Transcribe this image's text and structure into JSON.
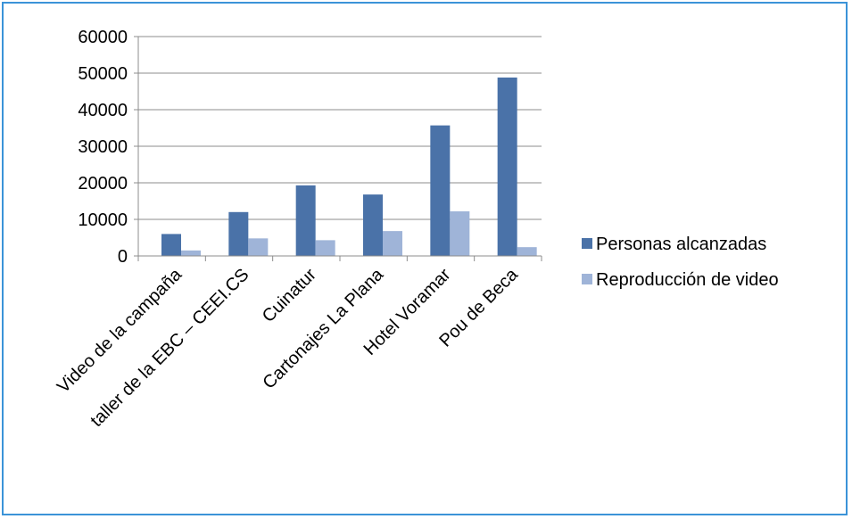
{
  "chart_data": {
    "type": "bar",
    "title": "",
    "xlabel": "",
    "ylabel": "",
    "categories": [
      "Video de la campaña",
      "taller de la EBC – CEEI.CS",
      "Cuinatur",
      "Cartonajes La Plana",
      "Hotel Voramar",
      "Pou de Beca"
    ],
    "series": [
      {
        "name": "Personas alcanzadas",
        "color": "#4a72a8",
        "values": [
          6000,
          12000,
          19300,
          16800,
          35700,
          48800
        ]
      },
      {
        "name": "Reproducción de video",
        "color": "#9fb4d8",
        "values": [
          1500,
          4800,
          4300,
          6800,
          12200,
          2400
        ]
      }
    ],
    "ylim": [
      0,
      60000
    ],
    "yticks": [
      "0",
      "10000",
      "20000",
      "30000",
      "40000",
      "50000",
      "60000"
    ],
    "grid": true,
    "legend": "right"
  },
  "colors": {
    "frame_border": "#3b93d8",
    "gridline": "#8c8c8c",
    "axis": "#8c8c8c"
  }
}
